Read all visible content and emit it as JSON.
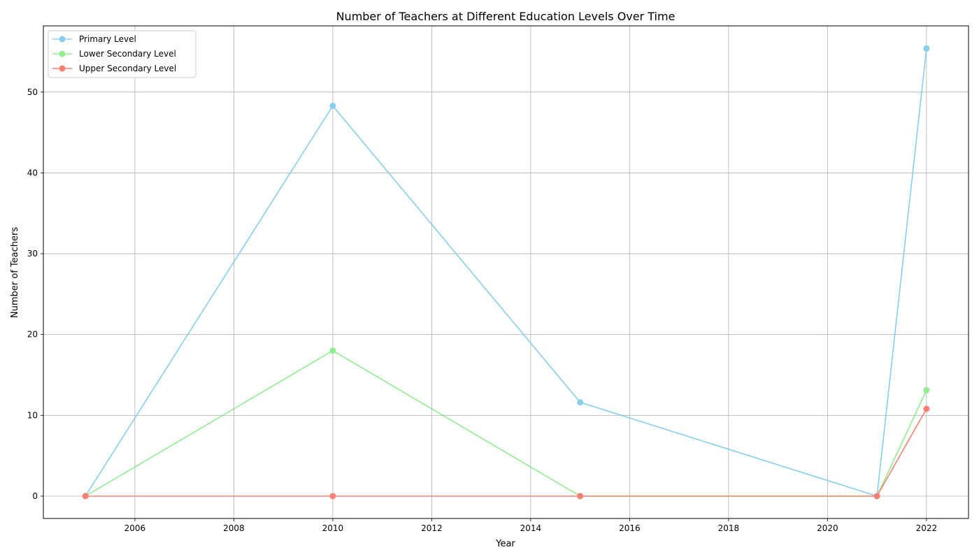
{
  "chart_data": {
    "type": "line",
    "title": "Number of Teachers at Different Education Levels Over Time",
    "xlabel": "Year",
    "ylabel": "Number of Teachers",
    "x": [
      2005,
      2010,
      2015,
      2021,
      2022
    ],
    "xlim": [
      2004.15,
      2022.85
    ],
    "ylim": [
      -2.77,
      58.2
    ],
    "xticks": [
      2006,
      2008,
      2010,
      2012,
      2014,
      2016,
      2018,
      2020,
      2022
    ],
    "yticks": [
      0,
      10,
      20,
      30,
      40,
      50
    ],
    "grid": true,
    "legend_position": "upper-left",
    "series": [
      {
        "name": "Primary Level",
        "color": "#87CEEB",
        "values": [
          0,
          48.3,
          11.6,
          0,
          55.4
        ]
      },
      {
        "name": "Lower Secondary Level",
        "color": "#90EE90",
        "values": [
          0,
          18.0,
          0,
          0,
          13.1
        ]
      },
      {
        "name": "Upper Secondary Level",
        "color": "#FA8072",
        "values": [
          0,
          0,
          0,
          0,
          10.8
        ]
      }
    ]
  }
}
